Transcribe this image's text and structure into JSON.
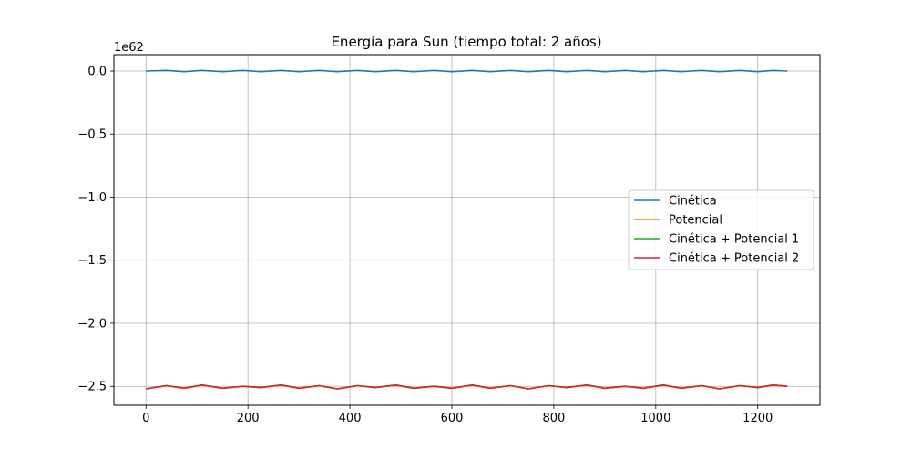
{
  "chart_data": {
    "type": "line",
    "title": "Energía para Sun (tiempo total: 2 años)",
    "xlabel": "",
    "ylabel": "",
    "offset_text": "1e62",
    "xlim": [
      -63,
      1322
    ],
    "ylim": [
      -2.65,
      0.13
    ],
    "xticks": [
      0,
      200,
      400,
      600,
      800,
      1000,
      1200
    ],
    "xtick_labels": [
      "0",
      "200",
      "400",
      "600",
      "800",
      "1000",
      "1200"
    ],
    "yticks": [
      0.0,
      -0.5,
      -1.0,
      -1.5,
      -2.0,
      -2.5
    ],
    "ytick_labels": [
      "0.0",
      "−0.5",
      "−1.0",
      "−1.5",
      "−2.0",
      "−2.5"
    ],
    "grid": true,
    "legend_position": "center-right",
    "x": [
      0,
      40,
      75,
      110,
      150,
      190,
      225,
      265,
      300,
      340,
      375,
      415,
      450,
      490,
      525,
      565,
      600,
      640,
      675,
      715,
      750,
      790,
      825,
      865,
      900,
      940,
      975,
      1015,
      1050,
      1090,
      1125,
      1165,
      1200,
      1230,
      1258
    ],
    "series": [
      {
        "name": "Cinética",
        "color": "#1f77b4",
        "values": [
          0.0,
          0.005,
          -0.005,
          0.005,
          -0.005,
          0.005,
          -0.005,
          0.005,
          -0.005,
          0.005,
          -0.005,
          0.005,
          -0.005,
          0.005,
          -0.005,
          0.005,
          -0.005,
          0.005,
          -0.005,
          0.005,
          -0.005,
          0.005,
          -0.005,
          0.005,
          -0.005,
          0.005,
          -0.005,
          0.005,
          -0.005,
          0.005,
          -0.005,
          0.005,
          -0.005,
          0.005,
          0.0
        ]
      },
      {
        "name": "Potencial",
        "color": "#ff7f0e",
        "values": [
          -2.52,
          -2.495,
          -2.515,
          -2.49,
          -2.515,
          -2.5,
          -2.51,
          -2.49,
          -2.515,
          -2.495,
          -2.52,
          -2.495,
          -2.51,
          -2.49,
          -2.515,
          -2.5,
          -2.515,
          -2.49,
          -2.515,
          -2.495,
          -2.52,
          -2.495,
          -2.51,
          -2.49,
          -2.515,
          -2.5,
          -2.515,
          -2.49,
          -2.515,
          -2.495,
          -2.52,
          -2.495,
          -2.51,
          -2.49,
          -2.5
        ]
      },
      {
        "name": "Cinética + Potencial 1",
        "color": "#2ca02c",
        "values": [
          -2.52,
          -2.495,
          -2.515,
          -2.49,
          -2.515,
          -2.5,
          -2.51,
          -2.49,
          -2.515,
          -2.495,
          -2.52,
          -2.495,
          -2.51,
          -2.49,
          -2.515,
          -2.5,
          -2.515,
          -2.49,
          -2.515,
          -2.495,
          -2.52,
          -2.495,
          -2.51,
          -2.49,
          -2.515,
          -2.5,
          -2.515,
          -2.49,
          -2.515,
          -2.495,
          -2.52,
          -2.495,
          -2.51,
          -2.49,
          -2.5
        ]
      },
      {
        "name": "Cinética + Potencial 2",
        "color": "#d62728",
        "values": [
          -2.52,
          -2.495,
          -2.515,
          -2.49,
          -2.515,
          -2.5,
          -2.51,
          -2.49,
          -2.515,
          -2.495,
          -2.52,
          -2.495,
          -2.51,
          -2.49,
          -2.515,
          -2.5,
          -2.515,
          -2.49,
          -2.515,
          -2.495,
          -2.52,
          -2.495,
          -2.51,
          -2.49,
          -2.515,
          -2.5,
          -2.515,
          -2.49,
          -2.515,
          -2.495,
          -2.52,
          -2.495,
          -2.51,
          -2.49,
          -2.5
        ]
      }
    ]
  }
}
